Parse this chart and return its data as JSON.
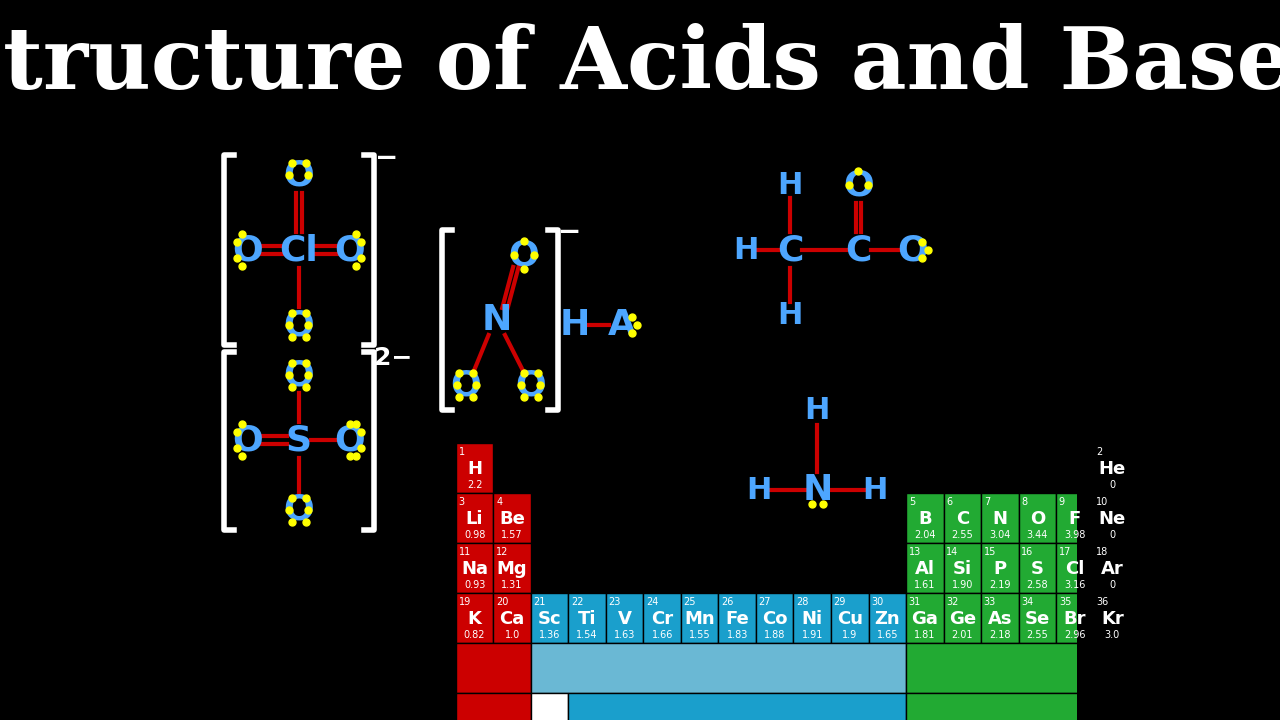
{
  "title": "Structure of Acids and Bases",
  "bg_color": "#000000",
  "title_color": "#ffffff",
  "atom_color_blue": "#4da6ff",
  "atom_color_red": "#ff0000",
  "atom_color_yellow": "#ffff00",
  "bond_color": "#cc0000",
  "bracket_color": "#ffffff",
  "periodic_table": {
    "red_elements": [
      {
        "num": 1,
        "sym": "H",
        "val": "2.2",
        "row": 0,
        "col": 0
      },
      {
        "num": 3,
        "sym": "Li",
        "val": "0.98",
        "row": 1,
        "col": 0
      },
      {
        "num": 4,
        "sym": "Be",
        "val": "1.57",
        "row": 1,
        "col": 1
      },
      {
        "num": 11,
        "sym": "Na",
        "val": "0.93",
        "row": 2,
        "col": 0
      },
      {
        "num": 12,
        "sym": "Mg",
        "val": "1.31",
        "row": 2,
        "col": 1
      },
      {
        "num": 19,
        "sym": "K",
        "val": "0.82",
        "row": 3,
        "col": 0
      },
      {
        "num": 20,
        "sym": "Ca",
        "val": "1.0",
        "row": 3,
        "col": 1
      }
    ],
    "blue_elements": [
      {
        "num": 21,
        "sym": "Sc",
        "val": "1.36",
        "row": 3,
        "col": 2
      },
      {
        "num": 22,
        "sym": "Ti",
        "val": "1.54",
        "row": 3,
        "col": 3
      },
      {
        "num": 23,
        "sym": "V",
        "val": "1.63",
        "row": 3,
        "col": 4
      },
      {
        "num": 24,
        "sym": "Cr",
        "val": "1.66",
        "row": 3,
        "col": 5
      },
      {
        "num": 25,
        "sym": "Mn",
        "val": "1.55",
        "row": 3,
        "col": 6
      },
      {
        "num": 26,
        "sym": "Fe",
        "val": "1.83",
        "row": 3,
        "col": 7
      },
      {
        "num": 27,
        "sym": "Co",
        "val": "1.88",
        "row": 3,
        "col": 8
      },
      {
        "num": 28,
        "sym": "Ni",
        "val": "1.91",
        "row": 3,
        "col": 9
      },
      {
        "num": 29,
        "sym": "Cu",
        "val": "1.9",
        "row": 3,
        "col": 10
      },
      {
        "num": 30,
        "sym": "Zn",
        "val": "1.65",
        "row": 3,
        "col": 11
      }
    ],
    "green_elements": [
      {
        "num": 5,
        "sym": "B",
        "val": "2.04",
        "row": 1,
        "col": 12
      },
      {
        "num": 6,
        "sym": "C",
        "val": "2.55",
        "row": 1,
        "col": 13
      },
      {
        "num": 7,
        "sym": "N",
        "val": "3.04",
        "row": 1,
        "col": 14
      },
      {
        "num": 8,
        "sym": "O",
        "val": "3.44",
        "row": 1,
        "col": 15
      },
      {
        "num": 9,
        "sym": "F",
        "val": "3.98",
        "row": 1,
        "col": 16
      },
      {
        "num": 10,
        "sym": "Ne",
        "val": "0",
        "row": 1,
        "col": 17
      },
      {
        "num": 13,
        "sym": "Al",
        "val": "1.61",
        "row": 2,
        "col": 12
      },
      {
        "num": 14,
        "sym": "Si",
        "val": "1.90",
        "row": 2,
        "col": 13
      },
      {
        "num": 15,
        "sym": "P",
        "val": "2.19",
        "row": 2,
        "col": 14
      },
      {
        "num": 16,
        "sym": "S",
        "val": "2.58",
        "row": 2,
        "col": 15
      },
      {
        "num": 17,
        "sym": "Cl",
        "val": "3.16",
        "row": 2,
        "col": 16
      },
      {
        "num": 18,
        "sym": "Ar",
        "val": "0",
        "row": 2,
        "col": 17
      },
      {
        "num": 31,
        "sym": "Ga",
        "val": "1.81",
        "row": 3,
        "col": 12
      },
      {
        "num": 32,
        "sym": "Ge",
        "val": "2.01",
        "row": 3,
        "col": 13
      },
      {
        "num": 33,
        "sym": "As",
        "val": "2.18",
        "row": 3,
        "col": 14
      },
      {
        "num": 34,
        "sym": "Se",
        "val": "2.55",
        "row": 3,
        "col": 15
      },
      {
        "num": 35,
        "sym": "Br",
        "val": "2.96",
        "row": 3,
        "col": 16
      },
      {
        "num": 36,
        "sym": "Kr",
        "val": "3.0",
        "row": 3,
        "col": 17
      },
      {
        "num": 2,
        "sym": "He",
        "val": "0",
        "row": 0,
        "col": 17
      }
    ]
  }
}
